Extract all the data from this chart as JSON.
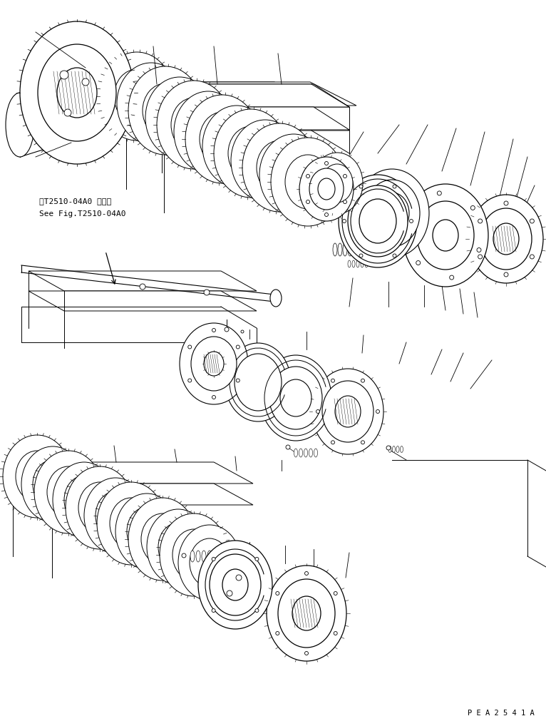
{
  "background_color": "#ffffff",
  "line_color": "#000000",
  "figure_width": 7.66,
  "figure_height": 10.11,
  "dpi": 100,
  "watermark_text": "P E A 2 5 4 1 A",
  "ref_text_line1": "第T2510-04A0 図参照",
  "ref_text_line2": "See Fig.T2510-04A0"
}
